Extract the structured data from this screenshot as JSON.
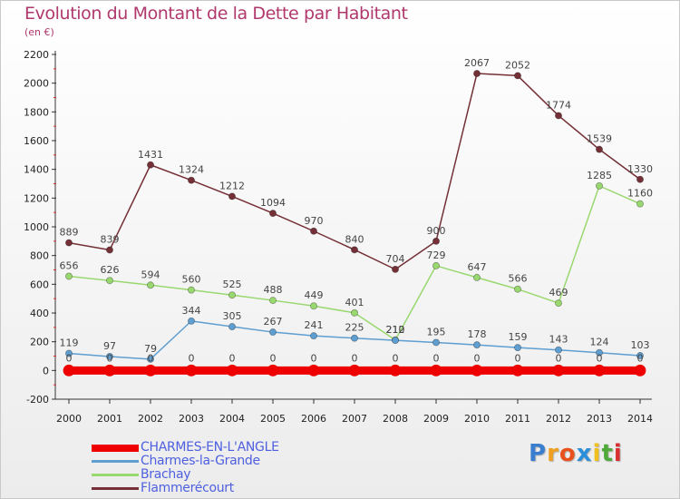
{
  "chart_data": {
    "type": "line",
    "title": "Evolution du Montant de la Dette par Habitant",
    "unit": "(en €)",
    "x": [
      "2000",
      "2001",
      "2002",
      "2003",
      "2004",
      "2005",
      "2006",
      "2007",
      "2008",
      "2009",
      "2010",
      "2011",
      "2012",
      "2013",
      "2014"
    ],
    "ylim": [
      -200,
      2200
    ],
    "yticks": [
      -200,
      0,
      200,
      400,
      600,
      800,
      1000,
      1200,
      1400,
      1600,
      1800,
      2000,
      2200
    ],
    "grid": false,
    "legend_position": "bottom-left",
    "series": [
      {
        "name": "CHARMES-EN-L'ANGLE",
        "color": "#ee0000",
        "values": [
          0,
          0,
          0,
          0,
          0,
          0,
          0,
          0,
          0,
          0,
          0,
          0,
          0,
          0,
          0
        ]
      },
      {
        "name": "Charmes-la-Grande",
        "color": "#5f9ed0",
        "values": [
          119,
          97,
          79,
          344,
          305,
          267,
          241,
          225,
          210,
          195,
          178,
          159,
          143,
          124,
          103
        ]
      },
      {
        "name": "Brachay",
        "color": "#99d86f",
        "values": [
          656,
          626,
          594,
          560,
          525,
          488,
          449,
          401,
          212,
          729,
          647,
          566,
          469,
          1285,
          1160
        ]
      },
      {
        "name": "Flammerécourt",
        "color": "#743036",
        "values": [
          889,
          839,
          1431,
          1324,
          1212,
          1094,
          970,
          840,
          704,
          900,
          2067,
          2052,
          1774,
          1539,
          1330
        ]
      }
    ]
  },
  "branding": {
    "logo_letters": [
      "P",
      "r",
      "o",
      "x",
      "i",
      "t",
      "i"
    ],
    "logo_colors": [
      "#3a7fcf",
      "#f0a020",
      "#e8511b",
      "#2c8fd9",
      "#f0c020",
      "#4faa3a",
      "#d83030"
    ]
  }
}
